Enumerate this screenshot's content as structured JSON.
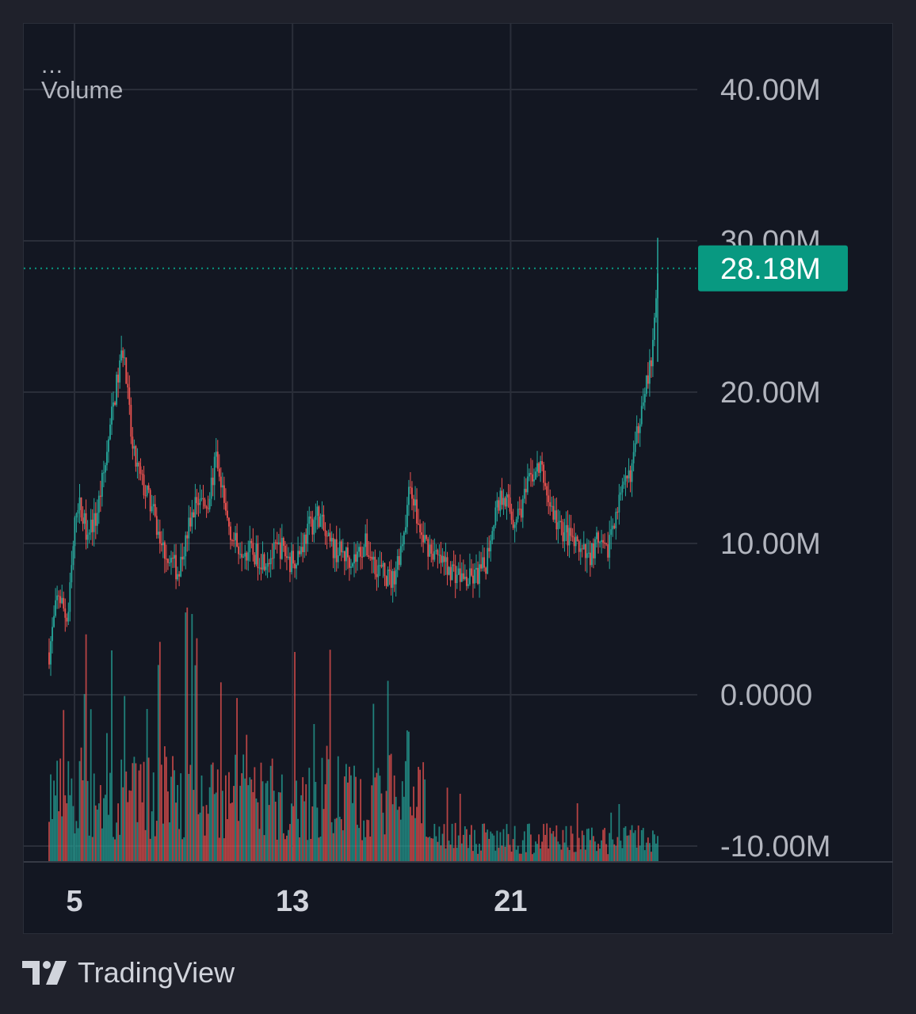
{
  "legend": {
    "menu": "...",
    "indicator": "Volume"
  },
  "brand": {
    "name": "TradingView",
    "logo_icon": "tradingview-logo-icon"
  },
  "colors": {
    "up": "#26a69a",
    "down": "#ef5350",
    "grid": "#2a2e39",
    "badge": "#089981",
    "text": "#b2b5be"
  },
  "price_badge": {
    "label": "28.18M",
    "value": 28180000
  },
  "chart_data": {
    "type": "candlestick",
    "x_tick_labels": [
      "5",
      "13",
      "21"
    ],
    "y_tick_labels": [
      "40.00M",
      "30.00M",
      "20.00M",
      "10.00M",
      "0.0000",
      "-10.00M"
    ],
    "y_ticks": [
      40000000,
      30000000,
      20000000,
      10000000,
      0,
      -10000000
    ],
    "ylim": [
      -10000000,
      44000000
    ],
    "grid": true,
    "last_value": 28180000,
    "close_path": [
      [
        0,
        2.8
      ],
      [
        1,
        6.8
      ],
      [
        2,
        4.8
      ],
      [
        3,
        13.0
      ],
      [
        4,
        11.0
      ],
      [
        5,
        11.5
      ],
      [
        6,
        15.0
      ],
      [
        7,
        19.5
      ],
      [
        8,
        23.0
      ],
      [
        9,
        16.0
      ],
      [
        10,
        14.0
      ],
      [
        11,
        12.5
      ],
      [
        12,
        10.0
      ],
      [
        13,
        9.0
      ],
      [
        14,
        8.0
      ],
      [
        15,
        11.0
      ],
      [
        16,
        13.0
      ],
      [
        17,
        12.5
      ],
      [
        18,
        15.5
      ],
      [
        19,
        12.0
      ],
      [
        20,
        10.0
      ],
      [
        21,
        9.8
      ],
      [
        22,
        9.3
      ],
      [
        23,
        9.0
      ],
      [
        24,
        9.2
      ],
      [
        25,
        9.8
      ],
      [
        26,
        8.8
      ],
      [
        27,
        9.5
      ],
      [
        28,
        11.0
      ],
      [
        29,
        12.0
      ],
      [
        30,
        10.0
      ],
      [
        31,
        9.5
      ],
      [
        32,
        9.2
      ],
      [
        33,
        9.0
      ],
      [
        34,
        10.0
      ],
      [
        35,
        8.8
      ],
      [
        36,
        8.0
      ],
      [
        37,
        7.5
      ],
      [
        38,
        10.0
      ],
      [
        39,
        14.0
      ],
      [
        40,
        10.5
      ],
      [
        41,
        9.8
      ],
      [
        42,
        8.8
      ],
      [
        43,
        8.5
      ],
      [
        44,
        8.0
      ],
      [
        45,
        7.5
      ],
      [
        46,
        7.8
      ],
      [
        47,
        8.5
      ],
      [
        48,
        12.0
      ],
      [
        49,
        13.5
      ],
      [
        50,
        11.5
      ],
      [
        51,
        12.5
      ],
      [
        52,
        14.5
      ],
      [
        53,
        15.0
      ],
      [
        54,
        12.5
      ],
      [
        55,
        11.0
      ],
      [
        56,
        10.5
      ],
      [
        57,
        9.5
      ],
      [
        58,
        9.0
      ],
      [
        59,
        10.0
      ],
      [
        60,
        9.2
      ],
      [
        61,
        12.0
      ],
      [
        62,
        13.5
      ],
      [
        63,
        15.5
      ],
      [
        64,
        20.0
      ],
      [
        65,
        22.0
      ],
      [
        65.6,
        28.18
      ]
    ],
    "close_scale": 1000000,
    "candle_count": 380,
    "volume_pane": {
      "ylim_top": 30000000,
      "series": "volume histogram (no axis labels shown)"
    }
  }
}
